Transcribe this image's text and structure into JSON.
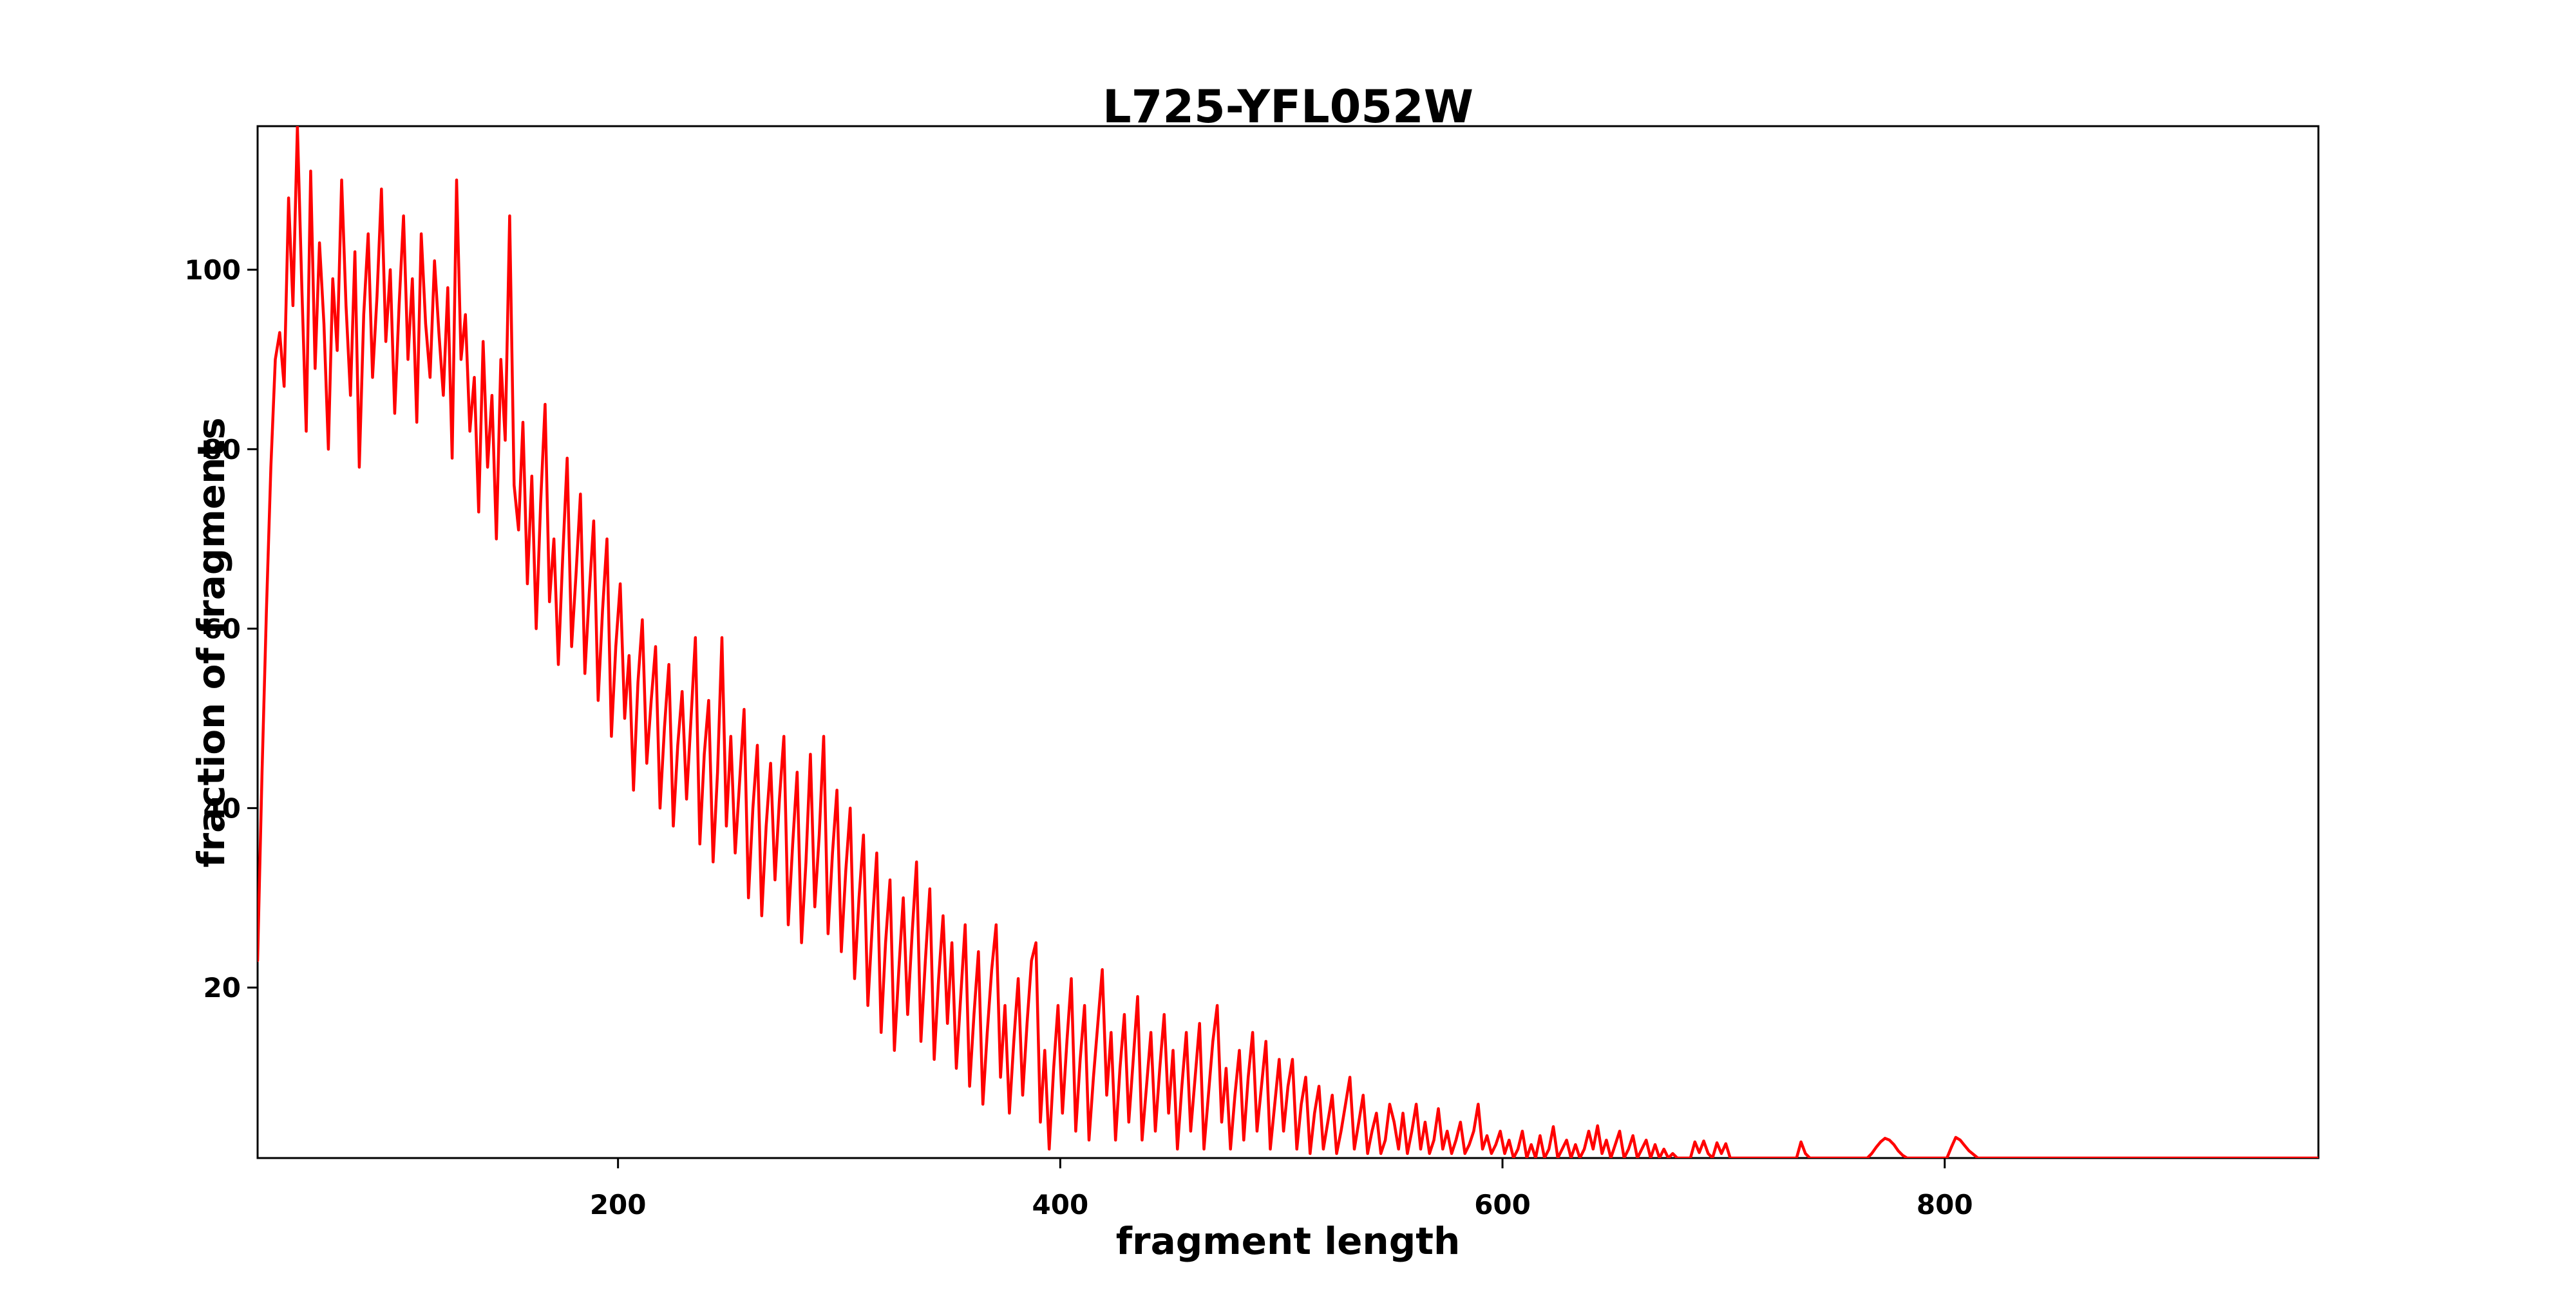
{
  "figure": {
    "background": "#ffffff"
  },
  "chart_data": {
    "type": "line",
    "title": "L725-YFL052W",
    "xlabel": "fragment length",
    "ylabel": "fraction of fragments",
    "line_color": "#ff0000",
    "axis_color": "#000000",
    "grid": false,
    "legend": "none",
    "xlim": [
      37,
      969
    ],
    "ylim": [
      1,
      116
    ],
    "x_ticks": [
      200,
      400,
      600,
      800
    ],
    "y_ticks": [
      20,
      40,
      60,
      80,
      100
    ],
    "series": [
      {
        "name": "L725-YFL052W",
        "x_start": 37,
        "x_step": 2,
        "y": [
          23,
          44,
          62,
          78,
          90,
          93,
          87,
          108,
          96,
          116,
          98,
          82,
          111,
          89,
          103,
          94,
          80,
          99,
          91,
          110,
          96,
          86,
          102,
          78,
          95,
          104,
          88,
          97,
          109,
          92,
          100,
          84,
          96,
          106,
          90,
          99,
          83,
          104,
          94,
          88,
          101,
          93,
          86,
          98,
          79,
          110,
          90,
          95,
          82,
          88,
          73,
          92,
          78,
          86,
          70,
          90,
          81,
          106,
          76,
          71,
          83,
          65,
          77,
          60,
          74,
          85,
          63,
          70,
          56,
          68,
          79,
          58,
          66,
          75,
          55,
          64,
          72,
          52,
          62,
          70,
          48,
          58,
          65,
          50,
          57,
          42,
          54,
          61,
          45,
          52,
          58,
          40,
          49,
          56,
          38,
          47,
          53,
          41,
          50,
          59,
          36,
          46,
          52,
          34,
          44,
          59,
          38,
          48,
          35,
          43,
          51,
          30,
          40,
          47,
          28,
          38,
          45,
          32,
          41,
          48,
          27,
          36,
          44,
          25,
          34,
          46,
          29,
          37,
          48,
          26,
          35,
          42,
          24,
          33,
          40,
          21,
          30,
          37,
          18,
          27,
          35,
          15,
          25,
          32,
          13,
          22,
          30,
          17,
          26,
          34,
          14,
          23,
          31,
          12,
          21,
          28,
          16,
          25,
          11,
          19,
          27,
          9,
          17,
          24,
          7,
          15,
          22,
          27,
          10,
          18,
          6,
          14,
          21,
          8,
          16,
          23,
          25,
          5,
          13,
          2,
          11,
          18,
          6,
          14,
          21,
          4,
          12,
          18,
          3,
          10,
          16,
          22,
          8,
          15,
          3,
          11,
          17,
          5,
          12,
          19,
          3,
          9,
          15,
          4,
          11,
          17,
          6,
          13,
          2,
          9,
          15,
          4,
          10,
          16,
          2,
          8,
          14,
          18,
          5,
          11,
          2,
          8,
          13,
          3,
          10,
          15,
          4,
          9,
          14,
          2,
          7,
          12,
          4,
          9,
          12,
          2,
          7,
          10,
          1.5,
          6,
          9,
          2,
          5,
          8,
          1.5,
          4,
          7,
          10,
          2,
          5,
          8,
          1.5,
          4,
          6,
          1.5,
          3,
          7,
          5,
          2,
          6,
          1.5,
          4,
          7,
          2,
          5,
          1.5,
          3,
          6.5,
          2,
          4,
          1.5,
          3,
          5,
          1.5,
          2.5,
          4,
          7,
          2,
          3.5,
          1.5,
          2.5,
          4,
          1.5,
          3,
          1,
          2,
          4,
          1,
          2.5,
          1,
          3.5,
          1,
          2,
          4.5,
          1,
          2,
          3,
          1,
          2.5,
          1,
          2,
          4,
          2,
          4.6,
          1.5,
          3,
          1,
          2.5,
          4,
          1,
          2,
          3.5,
          1,
          2,
          3,
          1,
          2.5,
          1,
          2,
          1,
          1.5,
          1,
          1,
          1,
          1,
          2.8,
          1.6,
          2.9,
          1.5,
          1,
          2.7,
          1.5,
          2.6,
          1,
          1,
          1,
          1,
          1,
          1,
          1,
          1,
          1,
          1,
          1,
          1,
          1,
          1,
          1,
          1,
          2.8,
          1.5,
          1,
          1,
          1,
          1,
          1,
          1,
          1,
          1,
          1,
          1,
          1,
          1,
          1,
          1,
          1.5,
          2.2,
          2.8,
          3.2,
          3,
          2.5,
          1.8,
          1.3,
          1,
          1,
          1,
          1,
          1,
          1,
          1,
          1,
          1,
          1,
          2.2,
          3.3,
          3,
          2.4,
          1.8,
          1.4,
          1,
          1,
          1,
          1,
          1,
          1,
          1,
          1,
          1,
          1,
          1,
          1,
          1,
          1,
          1,
          1,
          1,
          1,
          1,
          1,
          1,
          1,
          1,
          1,
          1,
          1,
          1,
          1,
          1,
          1,
          1,
          1,
          1,
          1,
          1,
          1,
          1,
          1,
          1,
          1,
          1,
          1,
          1,
          1,
          1,
          1,
          1,
          1,
          1,
          1,
          1,
          1,
          1,
          1,
          1,
          1,
          1,
          1,
          1,
          1,
          1,
          1,
          1,
          1,
          1,
          1,
          1,
          1,
          1,
          1,
          1,
          1,
          1,
          1,
          1,
          1,
          1,
          1
        ]
      }
    ]
  }
}
